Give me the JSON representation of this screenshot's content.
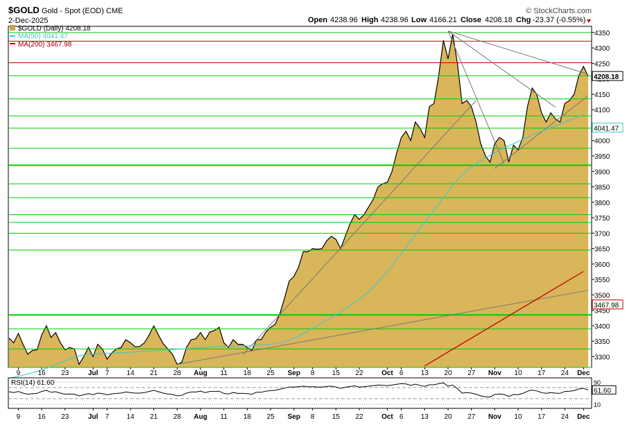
{
  "header": {
    "symbol": "$GOLD",
    "description": "Gold - Spot (EOD) CME",
    "date": "2-Dec-2025",
    "brand": "© StockCharts.com",
    "ohlc": {
      "open_label": "Open",
      "open": "4238.96",
      "high_label": "High",
      "high": "4238.96",
      "low_label": "Low",
      "low": "4166.21",
      "close_label": "Close",
      "close": "4208.18",
      "chg_label": "Chg",
      "chg": "-23.37 (-0.55%)"
    }
  },
  "legend": [
    {
      "label": "$GOLD (Daily) 4208.18",
      "color": "#c8a24a"
    },
    {
      "label": "MA(50) 4041.47",
      "color": "#40c8c8"
    },
    {
      "label": "MA(200) 3467.98",
      "color": "#c00000"
    }
  ],
  "price_badges": {
    "close": "4208.18",
    "ma50": "4041.47",
    "ma200": "3467.98"
  },
  "colors": {
    "area": "#d9b65a",
    "line": "#000000",
    "ma50": "#40c8c8",
    "ma200": "#c00000",
    "hline_green": "#00cc00",
    "hline_red": "#cc0000",
    "trend": "#777777"
  },
  "chart_data": {
    "type": "area",
    "title": "$GOLD Gold - Spot (EOD) CME",
    "ylim": [
      3265,
      4370
    ],
    "yticks": [
      4350,
      4300,
      4250,
      4200,
      4150,
      4100,
      4050,
      4000,
      3950,
      3900,
      3850,
      3800,
      3750,
      3700,
      3650,
      3600,
      3550,
      3500,
      3450,
      3400,
      3350,
      3300
    ],
    "x_labels": [
      {
        "i": 2,
        "label": "9"
      },
      {
        "i": 7,
        "label": "16"
      },
      {
        "i": 12,
        "label": "23"
      },
      {
        "i": 18,
        "label": "Jul"
      },
      {
        "i": 21,
        "label": "7"
      },
      {
        "i": 26,
        "label": "14"
      },
      {
        "i": 31,
        "label": "21"
      },
      {
        "i": 36,
        "label": "28"
      },
      {
        "i": 41,
        "label": "Aug"
      },
      {
        "i": 46,
        "label": "11"
      },
      {
        "i": 51,
        "label": "18"
      },
      {
        "i": 56,
        "label": "25"
      },
      {
        "i": 61,
        "label": "Sep"
      },
      {
        "i": 65,
        "label": "8"
      },
      {
        "i": 70,
        "label": "15"
      },
      {
        "i": 75,
        "label": "22"
      },
      {
        "i": 81,
        "label": "Oct"
      },
      {
        "i": 84,
        "label": "6"
      },
      {
        "i": 89,
        "label": "13"
      },
      {
        "i": 94,
        "label": "20"
      },
      {
        "i": 99,
        "label": "27"
      },
      {
        "i": 104,
        "label": "Nov"
      },
      {
        "i": 109,
        "label": "10"
      },
      {
        "i": 114,
        "label": "17"
      },
      {
        "i": 119,
        "label": "24"
      },
      {
        "i": 123,
        "label": "Dec"
      }
    ],
    "series": [
      {
        "name": "$GOLD (Daily)",
        "values": [
          3360,
          3345,
          3375,
          3340,
          3308,
          3320,
          3322,
          3370,
          3400,
          3362,
          3378,
          3345,
          3322,
          3330,
          3325,
          3275,
          3300,
          3330,
          3300,
          3340,
          3325,
          3292,
          3312,
          3325,
          3330,
          3355,
          3345,
          3332,
          3333,
          3345,
          3370,
          3400,
          3370,
          3342,
          3325,
          3308,
          3275,
          3282,
          3330,
          3355,
          3358,
          3378,
          3355,
          3380,
          3385,
          3395,
          3345,
          3330,
          3355,
          3340,
          3340,
          3330,
          3320,
          3355,
          3355,
          3380,
          3395,
          3405,
          3440,
          3490,
          3545,
          3560,
          3590,
          3640,
          3640,
          3650,
          3648,
          3650,
          3675,
          3690,
          3680,
          3650,
          3690,
          3730,
          3760,
          3745,
          3760,
          3785,
          3810,
          3850,
          3860,
          3865,
          3900,
          3960,
          4010,
          4030,
          4000,
          4060,
          4040,
          4010,
          4110,
          4120,
          4210,
          4325,
          4265,
          4345,
          4250,
          4120,
          4130,
          4110,
          4060,
          3990,
          3950,
          3930,
          3990,
          4010,
          4000,
          3930,
          3985,
          3970,
          4010,
          4110,
          4170,
          4150,
          4090,
          4060,
          4090,
          4070,
          4060,
          4120,
          4130,
          4150,
          4210,
          4240,
          4208
        ]
      },
      {
        "name": "MA(50)",
        "values": [
          3230,
          3233,
          3236,
          3240,
          3244,
          3248,
          3252,
          3256,
          3262,
          3268,
          3274,
          3280,
          3286,
          3292,
          3298,
          3302,
          3305,
          3307,
          3308,
          3309,
          3310,
          3311,
          3312,
          3312,
          3313,
          3313,
          3314,
          3315,
          3316,
          3317,
          3318,
          3319,
          3320,
          3321,
          3322,
          3323,
          3324,
          3325,
          3326,
          3327,
          3328,
          3329,
          3330,
          3331,
          3332,
          3333,
          3334,
          3334,
          3335,
          3335,
          3335,
          3335,
          3336,
          3337,
          3338,
          3339,
          3340,
          3342,
          3345,
          3349,
          3354,
          3360,
          3367,
          3375,
          3383,
          3391,
          3400,
          3409,
          3418,
          3427,
          3436,
          3445,
          3455,
          3465,
          3475,
          3486,
          3498,
          3511,
          3525,
          3541,
          3558,
          3576,
          3595,
          3615,
          3635,
          3655,
          3675,
          3695,
          3715,
          3735,
          3755,
          3775,
          3795,
          3815,
          3835,
          3855,
          3872,
          3888,
          3902,
          3914,
          3925,
          3935,
          3944,
          3952,
          3960,
          3968,
          3976,
          3983,
          3990,
          3997,
          4004,
          4011,
          4018,
          4024,
          4030,
          4036,
          4042,
          4048,
          4054,
          4060,
          4066,
          4072,
          4078,
          4084,
          4041
        ]
      },
      {
        "name": "MA(200)",
        "values": [
          null,
          null,
          null,
          null,
          null,
          null,
          null,
          null,
          null,
          null,
          null,
          null,
          null,
          null,
          null,
          null,
          null,
          null,
          null,
          null,
          null,
          null,
          null,
          null,
          null,
          null,
          null,
          null,
          null,
          null,
          null,
          null,
          null,
          null,
          null,
          null,
          null,
          null,
          null,
          null,
          null,
          null,
          null,
          null,
          null,
          null,
          null,
          null,
          null,
          null,
          null,
          null,
          null,
          null,
          null,
          null,
          null,
          null,
          null,
          null,
          null,
          null,
          null,
          null,
          null,
          null,
          null,
          null,
          null,
          null,
          null,
          null,
          null,
          null,
          null,
          null,
          null,
          null,
          null,
          null,
          null,
          null,
          null,
          null,
          null,
          null,
          null,
          null,
          null,
          3270,
          3279,
          3288,
          3297,
          3306,
          3315,
          3324,
          3333,
          3342,
          3351,
          3360,
          3369,
          3378,
          3387,
          3396,
          3405,
          3414,
          3423,
          3432,
          3441,
          3450,
          3459,
          3468,
          3477,
          3486,
          3495,
          3504,
          3513,
          3522,
          3531,
          3540,
          3549,
          3558,
          3567,
          3576,
          3468
        ]
      }
    ],
    "hlines_green": [
      4350,
      4210,
      4135,
      4080,
      4040,
      3975,
      3920,
      3860,
      3815,
      3760,
      3735,
      3700,
      3645,
      3435,
      3390,
      3325,
      3265
    ],
    "hlines_red": [
      4322,
      4252
    ],
    "trendlines": [
      {
        "x1": 36,
        "y1": 3275,
        "x2": 124,
        "y2": 3515
      },
      {
        "x1": 94,
        "y1": 4355,
        "x2": 124,
        "y2": 4215
      },
      {
        "x1": 94,
        "y1": 4355,
        "x2": 117,
        "y2": 4108
      },
      {
        "x1": 94,
        "y1": 4355,
        "x2": 106,
        "y2": 3925
      },
      {
        "x1": 50,
        "y1": 3305,
        "x2": 100,
        "y2": 4130
      },
      {
        "x1": 104,
        "y1": 3910,
        "x2": 124,
        "y2": 4145
      }
    ],
    "rsi": {
      "label": "RSI(14) 61.60",
      "value_badge": "61.60",
      "levels": [
        90,
        70,
        30,
        10
      ],
      "values": [
        55,
        52,
        56,
        50,
        46,
        48,
        49,
        56,
        60,
        53,
        55,
        50,
        46,
        47,
        46,
        40,
        44,
        48,
        44,
        50,
        48,
        44,
        47,
        49,
        50,
        54,
        52,
        50,
        50,
        52,
        56,
        60,
        55,
        50,
        47,
        45,
        40,
        42,
        50,
        54,
        54,
        57,
        52,
        56,
        56,
        57,
        49,
        47,
        52,
        49,
        49,
        48,
        46,
        53,
        53,
        57,
        59,
        60,
        64,
        68,
        72,
        72,
        73,
        75,
        73,
        73,
        72,
        72,
        74,
        75,
        72,
        67,
        71,
        74,
        76,
        72,
        73,
        75,
        77,
        79,
        78,
        77,
        79,
        82,
        84,
        83,
        78,
        82,
        78,
        74,
        80,
        80,
        84,
        87,
        75,
        79,
        66,
        50,
        52,
        50,
        46,
        40,
        37,
        36,
        45,
        47,
        45,
        38,
        45,
        44,
        49,
        57,
        61,
        58,
        52,
        49,
        52,
        50,
        49,
        56,
        57,
        59,
        65,
        67,
        61.6
      ]
    }
  }
}
